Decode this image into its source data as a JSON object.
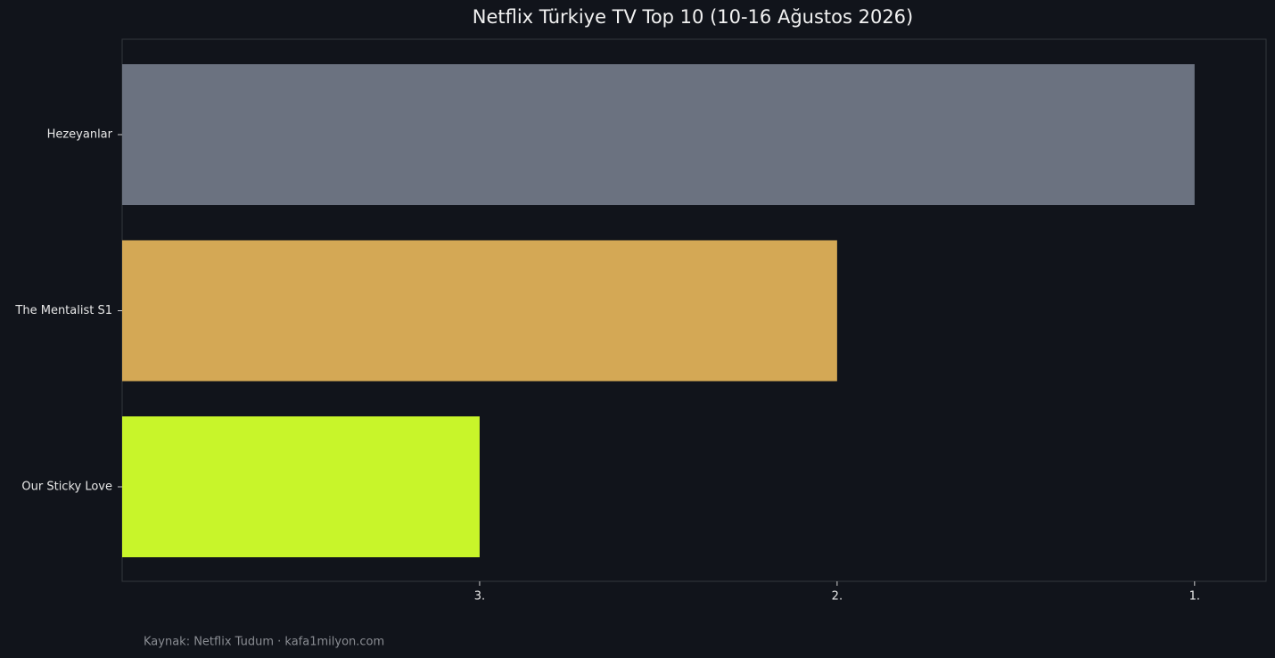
{
  "chart_data": {
    "type": "barh",
    "title": "Netflix Türkiye TV Top 10 (10-16 Ağustos 2026)",
    "categories": [
      "Hezeyanlar",
      "The Mentalist S1",
      "Our Sticky Love"
    ],
    "values": [
      3,
      2,
      1
    ],
    "colors": [
      "#6b7280",
      "#d4a855",
      "#c8f52a"
    ],
    "xlim": [
      0,
      3.2
    ],
    "xticks": [
      {
        "value": 1,
        "label": "3."
      },
      {
        "value": 2,
        "label": "2."
      },
      {
        "value": 3,
        "label": "1."
      }
    ],
    "source": "Kaynak: Netflix Tudum · kafa1milyon.com"
  }
}
